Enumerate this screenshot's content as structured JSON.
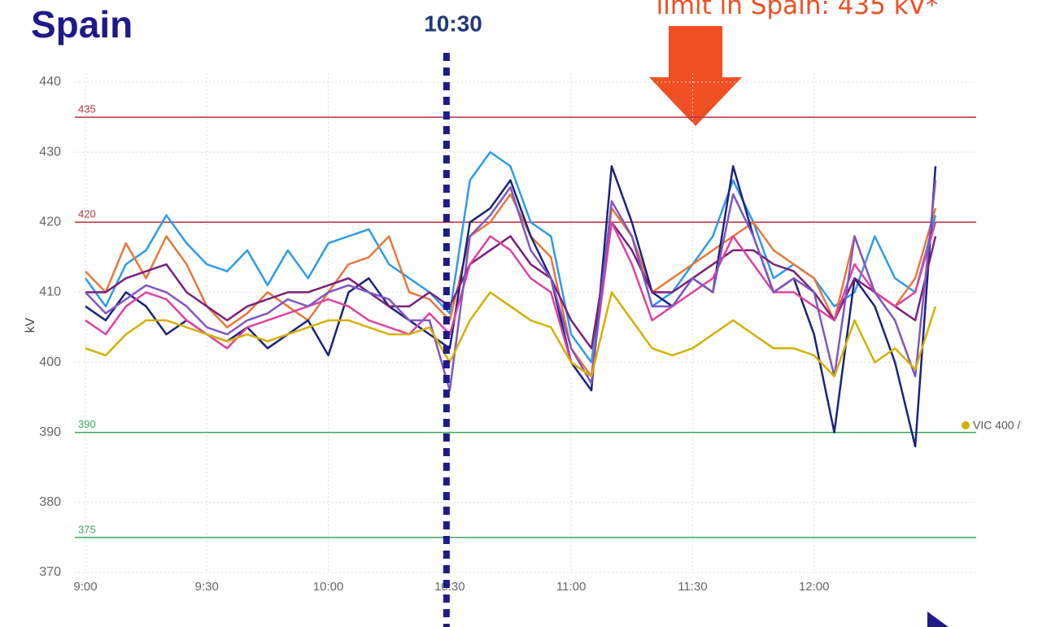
{
  "chart_data": {
    "type": "line",
    "title": "Spain",
    "ylabel": "kV",
    "marker_label": "10:30",
    "marker_x": "10:30",
    "annotation": "limit in Spain: 435 kV*",
    "legend_fragment": {
      "name": "VIC 400 /",
      "color": "#d4b000"
    },
    "xlim": [
      "9:00",
      "12:30"
    ],
    "xticks": [
      "9:00",
      "9:30",
      "10:00",
      "10:30",
      "11:00",
      "11:30",
      "12:00"
    ],
    "ylim": [
      370,
      440
    ],
    "yticks": [
      370,
      380,
      390,
      400,
      410,
      420,
      430,
      440
    ],
    "grid": true,
    "reference_lines": [
      {
        "value": 435,
        "color": "#b5303f"
      },
      {
        "value": 420,
        "color": "#b5303f"
      },
      {
        "value": 390,
        "color": "#3aa85a"
      },
      {
        "value": 375,
        "color": "#3aa85a"
      }
    ],
    "x": [
      "9:00",
      "9:05",
      "9:10",
      "9:15",
      "9:20",
      "9:25",
      "9:30",
      "9:35",
      "9:40",
      "9:45",
      "9:50",
      "9:55",
      "10:00",
      "10:05",
      "10:10",
      "10:15",
      "10:20",
      "10:25",
      "10:30",
      "10:35",
      "10:40",
      "10:45",
      "10:50",
      "10:55",
      "11:00",
      "11:05",
      "11:10",
      "11:15",
      "11:20",
      "11:25",
      "11:30",
      "11:35",
      "11:40",
      "11:45",
      "11:50",
      "11:55",
      "12:00",
      "12:05",
      "12:10",
      "12:15",
      "12:20",
      "12:25",
      "12:30"
    ],
    "series": [
      {
        "color": "#2e9be8",
        "values": [
          412,
          408,
          414,
          416,
          421,
          417,
          414,
          413,
          416,
          411,
          416,
          412,
          417,
          418,
          419,
          414,
          412,
          410,
          407,
          426,
          430,
          428,
          420,
          418,
          404,
          400,
          422,
          418,
          408,
          410,
          414,
          418,
          426,
          420,
          412,
          414,
          412,
          408,
          410,
          418,
          412,
          410,
          421
        ]
      },
      {
        "color": "#e8773c",
        "values": [
          413,
          410,
          417,
          412,
          418,
          414,
          408,
          405,
          407,
          410,
          408,
          406,
          410,
          414,
          415,
          418,
          410,
          409,
          406,
          418,
          420,
          424,
          418,
          415,
          402,
          398,
          422,
          418,
          410,
          412,
          414,
          416,
          418,
          420,
          416,
          414,
          412,
          406,
          418,
          410,
          408,
          412,
          422
        ]
      },
      {
        "color": "#1a237e",
        "values": [
          408,
          406,
          410,
          408,
          404,
          406,
          404,
          403,
          405,
          402,
          404,
          406,
          401,
          410,
          412,
          408,
          406,
          404,
          402,
          420,
          422,
          426,
          418,
          412,
          400,
          396,
          428,
          420,
          410,
          408,
          412,
          410,
          428,
          418,
          410,
          412,
          404,
          390,
          412,
          408,
          400,
          388,
          428
        ]
      },
      {
        "color": "#7b1f7a",
        "values": [
          410,
          410,
          412,
          413,
          414,
          410,
          408,
          406,
          408,
          409,
          410,
          410,
          411,
          412,
          410,
          408,
          408,
          410,
          408,
          414,
          416,
          418,
          414,
          412,
          406,
          402,
          420,
          416,
          410,
          410,
          412,
          414,
          416,
          416,
          414,
          413,
          410,
          406,
          412,
          410,
          408,
          406,
          418
        ]
      },
      {
        "color": "#e040a0",
        "values": [
          406,
          404,
          408,
          410,
          409,
          406,
          404,
          402,
          405,
          406,
          407,
          408,
          409,
          408,
          406,
          405,
          404,
          407,
          404,
          414,
          418,
          416,
          412,
          410,
          400,
          398,
          420,
          414,
          406,
          408,
          410,
          412,
          418,
          414,
          410,
          410,
          408,
          406,
          414,
          410,
          408,
          410,
          420
        ]
      },
      {
        "color": "#7e57c2",
        "values": [
          410,
          407,
          409,
          411,
          410,
          408,
          405,
          404,
          406,
          407,
          409,
          408,
          410,
          411,
          410,
          409,
          406,
          406,
          396,
          418,
          421,
          425,
          416,
          412,
          402,
          397,
          423,
          418,
          408,
          408,
          412,
          410,
          424,
          418,
          410,
          412,
          410,
          398,
          418,
          410,
          406,
          398,
          426
        ]
      },
      {
        "color": "#d4b000",
        "values": [
          402,
          401,
          404,
          406,
          406,
          405,
          404,
          403,
          404,
          403,
          404,
          405,
          406,
          406,
          405,
          404,
          404,
          405,
          400,
          406,
          410,
          408,
          406,
          405,
          400,
          398,
          410,
          406,
          402,
          401,
          402,
          404,
          406,
          404,
          402,
          402,
          401,
          398,
          406,
          400,
          402,
          399,
          408
        ]
      }
    ]
  }
}
